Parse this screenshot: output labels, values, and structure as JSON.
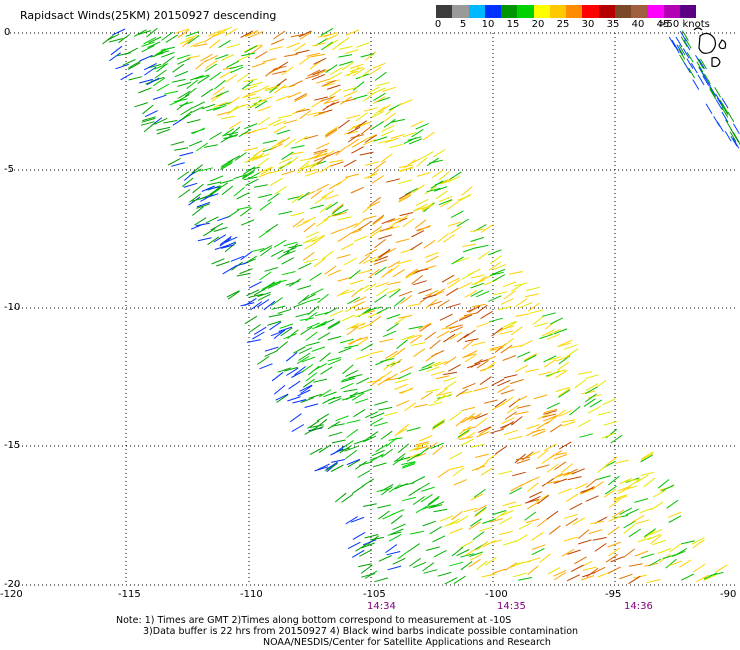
{
  "title": "Rapidsact Winds(25KM) 20150927 descending",
  "scale": {
    "colors": [
      "#3c3c3c",
      "#9a9a9a",
      "#00b8ff",
      "#0032ff",
      "#009600",
      "#00d200",
      "#ffff00",
      "#ffc800",
      "#ff8c00",
      "#ff0000",
      "#b40000",
      "#7a4a28",
      "#a06040",
      "#ff00ff",
      "#b400b4",
      "#5a0080"
    ],
    "labels": [
      "0",
      "5",
      "10",
      "15",
      "20",
      "25",
      "30",
      "35",
      "40",
      "45",
      ">50 knots"
    ]
  },
  "axes": {
    "x_ticks": [
      "-120",
      "-115",
      "-110",
      "-105",
      "-100",
      "-95",
      "-90"
    ],
    "y_ticks": [
      "0",
      "-5",
      "-10",
      "-15",
      "-20"
    ]
  },
  "times": [
    "14:34",
    "14:35",
    "14:36"
  ],
  "notes": [
    "Note: 1) Times are GMT 2)Times along bottom correspond to measurement at -10S",
    "3)Data buffer is 22 hrs from 20150927 4) Black wind barbs indicate possible contamination",
    "NOAA/NESDIS/Center for Satellite Applications and Research"
  ]
}
